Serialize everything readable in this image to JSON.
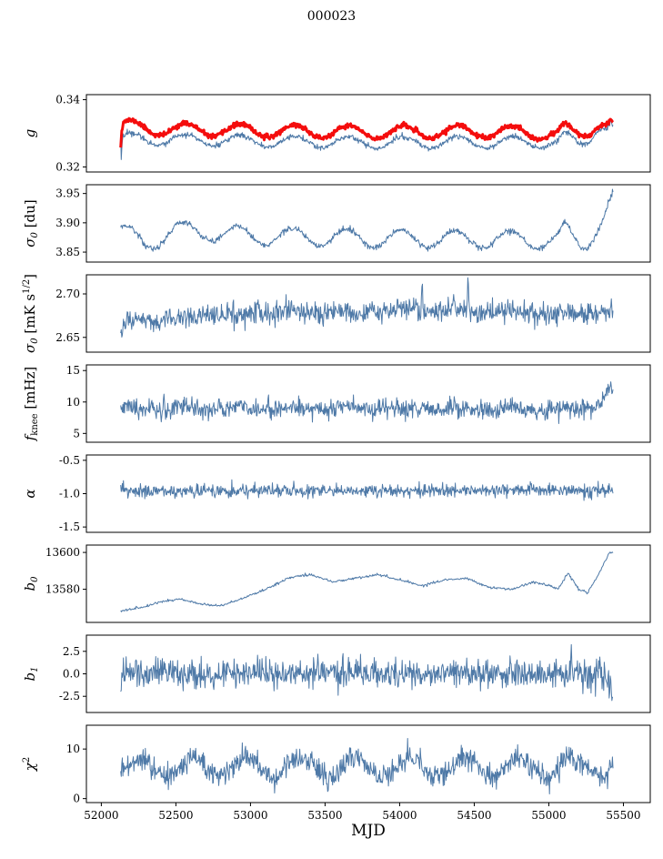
{
  "title": "000023",
  "xlabel": "MJD",
  "colors": {
    "blue": "#4e79a7",
    "red": "#f40d0d",
    "axis": "#000000",
    "background": "#ffffff"
  },
  "axes": {
    "x_min": 51900,
    "x_max": 55680,
    "x_ticks": [
      "52000",
      "52500",
      "53000",
      "53500",
      "54000",
      "54500",
      "55000",
      "55500"
    ],
    "x_tick_values": [
      52000,
      52500,
      53000,
      53500,
      54000,
      54500,
      55000,
      55500
    ],
    "x_data_start": 52130,
    "x_data_end": 55430
  },
  "chart_data": [
    {
      "type": "line",
      "id": "g",
      "ylabel": "g",
      "label_rich": [
        {
          "t": "g",
          "i": 1
        }
      ],
      "ylim": [
        0.3185,
        0.3415
      ],
      "yticks": [
        {
          "v": 0.32,
          "label": "0.32"
        },
        {
          "v": 0.34,
          "label": "0.34"
        }
      ],
      "series": [
        {
          "name": "g-fit",
          "color": "blue",
          "width": 1,
          "n": 900,
          "seed": 22,
          "noise": 0.0004,
          "x_start": 52130,
          "x_end": 55430,
          "anchors": [
            [
              52130,
              0.329
            ],
            [
              52134,
              0.3206
            ],
            [
              52140,
              0.3268
            ],
            [
              52150,
              0.3285
            ],
            [
              52400,
              0.3282
            ],
            [
              53000,
              0.3277
            ],
            [
              53800,
              0.3272
            ],
            [
              54600,
              0.3274
            ],
            [
              55060,
              0.3272
            ],
            [
              55110,
              0.329
            ],
            [
              55160,
              0.3273
            ],
            [
              55210,
              0.3268
            ],
            [
              55260,
              0.328
            ],
            [
              55310,
              0.3312
            ],
            [
              55350,
              0.3326
            ],
            [
              55390,
              0.3316
            ],
            [
              55415,
              0.3328
            ],
            [
              55430,
              0.331
            ]
          ],
          "osc": {
            "amp": 0.0017,
            "period": 365,
            "ref": 52109
          }
        },
        {
          "name": "g-highlight",
          "color": "red",
          "width": 3,
          "n": 900,
          "seed": 11,
          "noise": 0.00035,
          "x_start": 52130,
          "x_end": 55430,
          "anchors": [
            [
              52130,
              0.3255
            ],
            [
              52138,
              0.3305
            ],
            [
              52150,
              0.3322
            ],
            [
              52400,
              0.3312
            ],
            [
              53000,
              0.3308
            ],
            [
              53800,
              0.3303
            ],
            [
              54600,
              0.3305
            ],
            [
              55060,
              0.33
            ],
            [
              55110,
              0.3312
            ],
            [
              55150,
              0.33
            ],
            [
              55210,
              0.3294
            ],
            [
              55260,
              0.3305
            ],
            [
              55310,
              0.333
            ],
            [
              55350,
              0.3338
            ],
            [
              55390,
              0.333
            ],
            [
              55415,
              0.3338
            ],
            [
              55430,
              0.332
            ]
          ],
          "osc": {
            "amp": 0.0019,
            "period": 365,
            "ref": 52109
          }
        }
      ]
    },
    {
      "type": "line",
      "id": "sigma0-du",
      "ylabel": "σ0 [du]",
      "label_rich": [
        {
          "t": "σ",
          "i": 1
        },
        {
          "t": "0",
          "sub": 1,
          "i": 1
        },
        {
          "t": " [du]"
        }
      ],
      "ylim": [
        3.833,
        3.965
      ],
      "yticks": [
        {
          "v": 3.85,
          "label": "3.85"
        },
        {
          "v": 3.9,
          "label": "3.90"
        },
        {
          "v": 3.95,
          "label": "3.95"
        }
      ],
      "series": [
        {
          "name": "sigma0-du",
          "color": "blue",
          "width": 1,
          "n": 900,
          "seed": 33,
          "noise": 0.0025,
          "x_start": 52130,
          "x_end": 55430,
          "anchors": [
            [
              52130,
              3.884
            ],
            [
              52200,
              3.877
            ],
            [
              52300,
              3.866
            ],
            [
              52380,
              3.873
            ],
            [
              52500,
              3.888
            ],
            [
              53000,
              3.878
            ],
            [
              53800,
              3.873
            ],
            [
              54600,
              3.872
            ],
            [
              55060,
              3.87
            ],
            [
              55110,
              3.888
            ],
            [
              55160,
              3.872
            ],
            [
              55210,
              3.86
            ],
            [
              55260,
              3.868
            ],
            [
              55310,
              3.89
            ],
            [
              55360,
              3.908
            ],
            [
              55400,
              3.928
            ],
            [
              55430,
              3.944
            ]
          ],
          "osc": {
            "amp": 0.015,
            "period": 365,
            "ref": 52459
          }
        }
      ]
    },
    {
      "type": "line",
      "id": "sigma0-mks",
      "ylabel": "σ0 [mK s1/2]",
      "label_rich": [
        {
          "t": "σ",
          "i": 1
        },
        {
          "t": "0",
          "sub": 1,
          "i": 1
        },
        {
          "t": " [mK s"
        },
        {
          "t": "1/2",
          "sup": 1
        },
        {
          "t": "]"
        }
      ],
      "ylim": [
        2.633,
        2.722
      ],
      "yticks": [
        {
          "v": 2.65,
          "label": "2.65"
        },
        {
          "v": 2.7,
          "label": "2.70"
        }
      ],
      "series": [
        {
          "name": "sigma0-mks",
          "color": "blue",
          "width": 1,
          "n": 900,
          "seed": 44,
          "noise": 0.0062,
          "x_start": 52130,
          "x_end": 55430,
          "anchors": [
            [
              52130,
              2.652
            ],
            [
              52170,
              2.669
            ],
            [
              52400,
              2.67
            ],
            [
              53000,
              2.677
            ],
            [
              53600,
              2.679
            ],
            [
              54200,
              2.682
            ],
            [
              54700,
              2.679
            ],
            [
              55200,
              2.677
            ],
            [
              55430,
              2.681
            ]
          ],
          "osc": {
            "amp": 0.0015,
            "period": 365,
            "ref": 52459
          },
          "bumps": [
            {
              "x": 54150,
              "dy": 0.03,
              "w": 5
            },
            {
              "x": 54460,
              "dy": 0.032,
              "w": 5
            },
            {
              "x": 53050,
              "dy": 0.018,
              "w": 5
            }
          ]
        }
      ]
    },
    {
      "type": "line",
      "id": "fknee",
      "ylabel": "fknee [mHz]",
      "label_rich": [
        {
          "t": "f",
          "i": 1
        },
        {
          "t": "knee",
          "sub": 1
        },
        {
          "t": " [mHz]"
        }
      ],
      "ylim": [
        3.6,
        15.9
      ],
      "yticks": [
        {
          "v": 5,
          "label": "5"
        },
        {
          "v": 10,
          "label": "10"
        },
        {
          "v": 15,
          "label": "15"
        }
      ],
      "series": [
        {
          "name": "fknee",
          "color": "blue",
          "width": 1,
          "n": 900,
          "seed": 55,
          "noise": 0.75,
          "x_start": 52130,
          "x_end": 55430,
          "anchors": [
            [
              52130,
              8.7
            ],
            [
              52500,
              9.0
            ],
            [
              53500,
              9.0
            ],
            [
              54500,
              8.8
            ],
            [
              55100,
              8.8
            ],
            [
              55300,
              9.2
            ],
            [
              55370,
              11.0
            ],
            [
              55410,
              12.3
            ],
            [
              55430,
              11.8
            ]
          ],
          "osc": {
            "amp": 0.25,
            "period": 365,
            "ref": 52109
          },
          "bumps": [
            {
              "x": 52420,
              "dy": 2.2,
              "w": 4
            },
            {
              "x": 53120,
              "dy": 2.5,
              "w": 4
            },
            {
              "x": 54150,
              "dy": 2.0,
              "w": 4
            }
          ]
        }
      ]
    },
    {
      "type": "line",
      "id": "alpha",
      "ylabel": "α",
      "label_rich": [
        {
          "t": "α",
          "i": 1
        }
      ],
      "ylim": [
        -1.58,
        -0.42
      ],
      "yticks": [
        {
          "v": -1.5,
          "label": "-1.5"
        },
        {
          "v": -1.0,
          "label": "-1.0"
        },
        {
          "v": -0.5,
          "label": "-0.5"
        }
      ],
      "series": [
        {
          "name": "alpha",
          "color": "blue",
          "width": 1,
          "n": 900,
          "seed": 66,
          "noise": 0.045,
          "x_start": 52130,
          "x_end": 55430,
          "anchors": [
            [
              52130,
              -0.96
            ],
            [
              53000,
              -0.955
            ],
            [
              54000,
              -0.95
            ],
            [
              55430,
              -0.95
            ]
          ],
          "bumps": [
            {
              "x": 53850,
              "dy": -0.22,
              "w": 4
            },
            {
              "x": 54640,
              "dy": -0.12,
              "w": 4
            }
          ]
        }
      ]
    },
    {
      "type": "line",
      "id": "b0",
      "ylabel": "b0",
      "label_rich": [
        {
          "t": "b",
          "i": 1
        },
        {
          "t": "0",
          "sub": 1,
          "i": 1
        }
      ],
      "ylim": [
        13562,
        13604
      ],
      "yticks": [
        {
          "v": 13580,
          "label": "13580"
        },
        {
          "v": 13600,
          "label": "13600"
        }
      ],
      "series": [
        {
          "name": "b0",
          "color": "blue",
          "width": 1,
          "n": 700,
          "seed": 77,
          "noise": 0.35,
          "x_start": 52130,
          "x_end": 55430,
          "anchors": [
            [
              52130,
              13568
            ],
            [
              52250,
              13570
            ],
            [
              52400,
              13573
            ],
            [
              52520,
              13575
            ],
            [
              52650,
              13572
            ],
            [
              52800,
              13571
            ],
            [
              52950,
              13575
            ],
            [
              53100,
              13580
            ],
            [
              53250,
              13586
            ],
            [
              53400,
              13588
            ],
            [
              53550,
              13584
            ],
            [
              53700,
              13586
            ],
            [
              53850,
              13588
            ],
            [
              54000,
              13585
            ],
            [
              54150,
              13582
            ],
            [
              54300,
              13585
            ],
            [
              54450,
              13586
            ],
            [
              54600,
              13581
            ],
            [
              54750,
              13580
            ],
            [
              54900,
              13584
            ],
            [
              55000,
              13582
            ],
            [
              55060,
              13580
            ],
            [
              55130,
              13589
            ],
            [
              55200,
              13580
            ],
            [
              55260,
              13578
            ],
            [
              55320,
              13586
            ],
            [
              55370,
              13594
            ],
            [
              55400,
              13599
            ],
            [
              55430,
              13600
            ]
          ]
        }
      ]
    },
    {
      "type": "line",
      "id": "b1",
      "ylabel": "b1",
      "label_rich": [
        {
          "t": "b",
          "i": 1
        },
        {
          "t": "1",
          "sub": 1,
          "i": 1
        }
      ],
      "ylim": [
        -4.3,
        4.3
      ],
      "yticks": [
        {
          "v": -2.5,
          "label": "-2.5"
        },
        {
          "v": 0,
          "label": "0.0"
        },
        {
          "v": 2.5,
          "label": "2.5"
        }
      ],
      "series": [
        {
          "name": "b1",
          "color": "blue",
          "width": 1,
          "n": 900,
          "seed": 88,
          "noise": 0.8,
          "x_start": 52130,
          "x_end": 55430,
          "anchors": [
            [
              52130,
              -1.8
            ],
            [
              52140,
              0.2
            ],
            [
              53000,
              0.1
            ],
            [
              54000,
              0.05
            ],
            [
              55200,
              0.0
            ],
            [
              55300,
              -0.1
            ],
            [
              55380,
              -0.4
            ],
            [
              55420,
              -1.2
            ],
            [
              55430,
              -3.2
            ]
          ],
          "bumps": [
            {
              "x": 55150,
              "dy": 3.0,
              "w": 4
            },
            {
              "x": 55260,
              "dy": -2.0,
              "w": 4
            },
            {
              "x": 55340,
              "dy": 2.2,
              "w": 5
            }
          ]
        }
      ]
    },
    {
      "type": "line",
      "id": "chi2",
      "ylabel": "χ2",
      "label_rich": [
        {
          "t": "χ",
          "i": 1
        },
        {
          "t": "2",
          "sup": 1
        }
      ],
      "ylim": [
        -0.8,
        14.8
      ],
      "yticks": [
        {
          "v": 0,
          "label": "0"
        },
        {
          "v": 10,
          "label": "10"
        }
      ],
      "series": [
        {
          "name": "chi2",
          "color": "blue",
          "width": 1,
          "n": 900,
          "seed": 99,
          "noise": 1.25,
          "x_start": 52130,
          "x_end": 55430,
          "anchors": [
            [
              52130,
              5.5
            ],
            [
              52300,
              6.3
            ],
            [
              53000,
              6.3
            ],
            [
              54000,
              6.3
            ],
            [
              55000,
              6.3
            ],
            [
              55430,
              6.5
            ]
          ],
          "osc": {
            "amp": 1.9,
            "period": 365,
            "ref": 52150
          }
        }
      ]
    }
  ]
}
